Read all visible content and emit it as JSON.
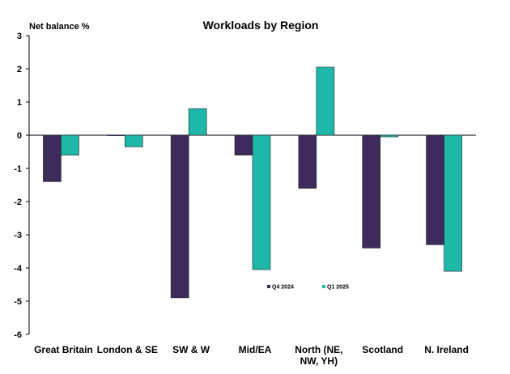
{
  "chart_data": {
    "type": "bar",
    "title": "Workloads by Region",
    "ylabel": "Net balance %",
    "xlabel": "",
    "ylim": [
      -6,
      3
    ],
    "yticks": [
      3,
      2,
      1,
      0,
      -1,
      -2,
      -3,
      -4,
      -5,
      -6
    ],
    "categories": [
      "Great Britain",
      "London & SE",
      "SW & W",
      "Mid/EA",
      "North (NE, NW, YH)",
      "Scotland",
      "N. Ireland"
    ],
    "category_lines": [
      [
        "Great Britain"
      ],
      [
        "London & SE"
      ],
      [
        "SW & W"
      ],
      [
        "Mid/EA"
      ],
      [
        "North (NE,",
        "NW, YH)"
      ],
      [
        "Scotland"
      ],
      [
        "N. Ireland"
      ]
    ],
    "series": [
      {
        "name": "Q4 2024",
        "color": "#3d2b5c",
        "values": [
          -1.4,
          0.0,
          -4.9,
          -0.6,
          -1.6,
          -3.4,
          -3.3
        ]
      },
      {
        "name": "Q1 2025",
        "color": "#1fb8a8",
        "values": [
          -0.6,
          -0.35,
          0.8,
          -4.05,
          2.05,
          -0.05,
          -4.1
        ]
      }
    ],
    "legend_position": "inside-lower-center",
    "grid": false
  }
}
